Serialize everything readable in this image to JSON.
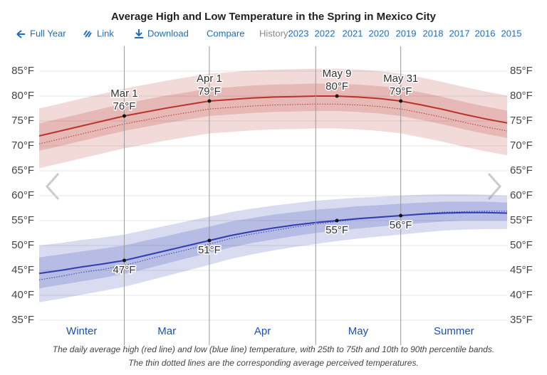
{
  "toolbar": {
    "full_year": "Full Year",
    "link": "Link",
    "download": "Download",
    "compare": "Compare",
    "history": "History:",
    "years": [
      "2023",
      "2022",
      "2021",
      "2020",
      "2019",
      "2018",
      "2017",
      "2016",
      "2015"
    ]
  },
  "chart_data": {
    "type": "band-line",
    "title": "Average High and Low Temperature in the Spring in Mexico City",
    "categories": [
      null,
      null,
      null,
      null,
      "Mar 1",
      null,
      null,
      null,
      "Apr 1",
      null,
      null,
      null,
      null,
      null,
      "May 9",
      null,
      null,
      "May 31",
      null,
      null,
      null,
      null,
      null
    ],
    "x_regions": [
      "Winter",
      "Mar",
      "Apr",
      "May",
      "Summer"
    ],
    "ylim": [
      30,
      90
    ],
    "yticks": [
      {
        "value": 35,
        "label": "35°F"
      },
      {
        "value": 40,
        "label": "40°F"
      },
      {
        "value": 45,
        "label": "45°F"
      },
      {
        "value": 50,
        "label": "50°F"
      },
      {
        "value": 55,
        "label": "55°F"
      },
      {
        "value": 60,
        "label": "60°F"
      },
      {
        "value": 65,
        "label": "65°F"
      },
      {
        "value": 70,
        "label": "70°F"
      },
      {
        "value": 75,
        "label": "75°F"
      },
      {
        "value": 80,
        "label": "80°F"
      },
      {
        "value": 85,
        "label": "85°F"
      }
    ],
    "grid": true,
    "series": [
      {
        "color": "#b8342b",
        "label_position": "above",
        "values": [
          72.0,
          73.0,
          74.0,
          75.0,
          76.0,
          76.8,
          77.6,
          78.3,
          79.0,
          79.3,
          79.6,
          79.8,
          79.9,
          80.0,
          80.0,
          79.8,
          79.5,
          79.0,
          78.2,
          77.3,
          76.3,
          75.4,
          74.6
        ],
        "value_labels": [
          null,
          null,
          null,
          null,
          "76°F",
          null,
          null,
          null,
          "79°F",
          null,
          null,
          null,
          null,
          null,
          "80°F",
          null,
          null,
          "79°F",
          null,
          null,
          null,
          null,
          null
        ],
        "p90": [
          77.5,
          78.5,
          79.5,
          80.5,
          81.5,
          82.3,
          83.1,
          83.8,
          84.5,
          84.8,
          85.1,
          85.3,
          85.4,
          85.5,
          85.5,
          85.3,
          85.0,
          84.5,
          83.7,
          82.8,
          81.8,
          80.9,
          80.1
        ],
        "p75": [
          74.5,
          75.5,
          76.5,
          77.5,
          78.5,
          79.3,
          80.1,
          80.8,
          81.5,
          81.8,
          82.1,
          82.3,
          82.4,
          82.5,
          82.5,
          82.3,
          82.0,
          81.5,
          80.7,
          79.8,
          78.8,
          77.9,
          77.1
        ],
        "p25": [
          69.0,
          70.0,
          71.0,
          72.0,
          73.0,
          73.8,
          74.6,
          75.3,
          76.0,
          76.3,
          76.6,
          76.8,
          76.9,
          77.0,
          77.0,
          76.8,
          76.5,
          76.0,
          75.2,
          74.3,
          73.3,
          72.4,
          71.6
        ],
        "p10": [
          65.5,
          66.5,
          67.5,
          68.5,
          69.5,
          70.3,
          71.1,
          71.8,
          72.5,
          72.8,
          73.1,
          73.3,
          73.4,
          73.5,
          73.5,
          73.3,
          73.0,
          72.5,
          71.7,
          70.8,
          69.8,
          68.9,
          68.1
        ],
        "perceived": [
          70.4,
          71.4,
          72.4,
          73.4,
          74.4,
          75.2,
          76.0,
          76.7,
          77.4,
          77.7,
          78.0,
          78.2,
          78.3,
          78.4,
          78.4,
          78.2,
          77.9,
          77.4,
          76.6,
          75.7,
          74.7,
          73.8,
          73.0
        ]
      },
      {
        "color": "#2f3db0",
        "label_position": "below",
        "values": [
          44.4,
          45.0,
          45.7,
          46.3,
          47.0,
          48.0,
          49.0,
          50.0,
          51.0,
          52.0,
          52.8,
          53.5,
          54.1,
          54.6,
          55.0,
          55.4,
          55.7,
          56.0,
          56.3,
          56.5,
          56.6,
          56.6,
          56.5
        ],
        "value_labels": [
          null,
          null,
          null,
          null,
          "47°F",
          null,
          null,
          null,
          "51°F",
          null,
          null,
          null,
          null,
          null,
          "55°F",
          null,
          null,
          "56°F",
          null,
          null,
          null,
          null,
          null
        ],
        "p90": [
          50.0,
          50.5,
          51.1,
          51.6,
          52.2,
          53.1,
          54.0,
          54.9,
          55.8,
          56.7,
          57.4,
          58.0,
          58.5,
          59.0,
          59.3,
          59.6,
          59.8,
          60.0,
          60.2,
          60.3,
          60.3,
          60.2,
          60.0
        ],
        "p75": [
          47.6,
          48.2,
          48.8,
          49.4,
          50.0,
          51.0,
          51.9,
          52.9,
          53.8,
          54.8,
          55.5,
          56.2,
          56.7,
          57.2,
          57.5,
          57.9,
          58.1,
          58.4,
          58.6,
          58.8,
          58.8,
          58.8,
          58.6
        ],
        "p25": [
          41.4,
          42.1,
          42.8,
          43.5,
          44.3,
          45.3,
          46.4,
          47.5,
          48.5,
          49.6,
          50.5,
          51.2,
          51.9,
          52.5,
          53.0,
          53.4,
          53.8,
          54.2,
          54.5,
          54.8,
          55.0,
          55.0,
          55.0
        ],
        "p10": [
          38.6,
          39.3,
          40.1,
          40.9,
          41.7,
          42.8,
          43.9,
          45.0,
          46.1,
          47.3,
          48.2,
          49.0,
          49.7,
          50.3,
          50.9,
          51.4,
          51.8,
          52.2,
          52.6,
          53.0,
          53.2,
          53.3,
          53.3
        ],
        "perceived": [
          43.1,
          43.8,
          44.6,
          45.2,
          46.0,
          47.1,
          48.2,
          49.2,
          50.3,
          51.4,
          52.3,
          53.0,
          53.7,
          54.3,
          54.8,
          55.3,
          55.6,
          56.0,
          56.4,
          56.7,
          56.8,
          56.9,
          56.9
        ]
      }
    ],
    "caption": [
      "The daily average high (red line) and low (blue line) temperature, with 25th to 75th and 10th to 90th percentile bands.",
      "The thin dotted lines are the corresponding average perceived temperatures."
    ]
  }
}
